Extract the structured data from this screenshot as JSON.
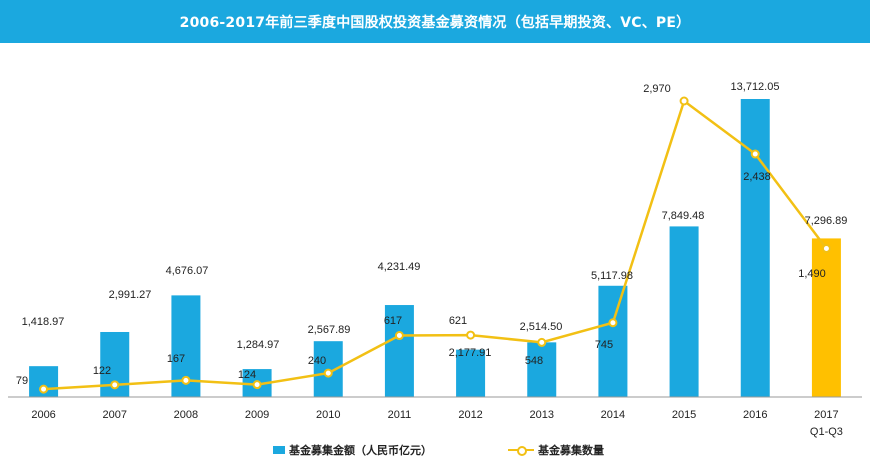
{
  "title": "2006-2017年前三季度中国股权投资基金募资情况（包括早期投资、VC、PE）",
  "chart_data": {
    "type": "bar",
    "categories": [
      "2006",
      "2007",
      "2008",
      "2009",
      "2010",
      "2011",
      "2012",
      "2013",
      "2014",
      "2015",
      "2016",
      "2017"
    ],
    "category_sublabels": [
      "",
      "",
      "",
      "",
      "",
      "",
      "",
      "",
      "",
      "",
      "",
      "Q1-Q3"
    ],
    "series": [
      {
        "name": "基金募集金额（人民币亿元）",
        "type": "bar",
        "values": [
          1418.97,
          2991.27,
          4676.07,
          1284.97,
          2567.89,
          4231.49,
          2177.91,
          2514.5,
          5117.98,
          7849.48,
          13712.05,
          7296.89
        ],
        "labels": [
          "1,418.97",
          "2,991.27",
          "4,676.07",
          "1,284.97",
          "2,567.89",
          "4,231.49",
          "2,177.91",
          "2,514.50",
          "5,117.98",
          "7,849.48",
          "13,712.05",
          "7,296.89"
        ],
        "color": "#1ba8df",
        "highlight_color": "#ffc000",
        "highlight_index": 11
      },
      {
        "name": "基金募集数量",
        "type": "line",
        "values": [
          79,
          122,
          167,
          124,
          240,
          617,
          621,
          548,
          745,
          2970,
          2438,
          1490
        ],
        "labels": [
          "79",
          "122",
          "167",
          "124",
          "240",
          "617",
          "621",
          "548",
          "745",
          "2,970",
          "2,438",
          "1,490"
        ],
        "color": "#f2c014"
      }
    ],
    "bar_ylim": [
      0,
      14500
    ],
    "line_ylim": [
      0,
      3250
    ],
    "grid": false,
    "legend_position": "bottom"
  },
  "legend": {
    "bar_label": "基金募集金额（人民币亿元）",
    "line_label": "基金募集数量"
  }
}
